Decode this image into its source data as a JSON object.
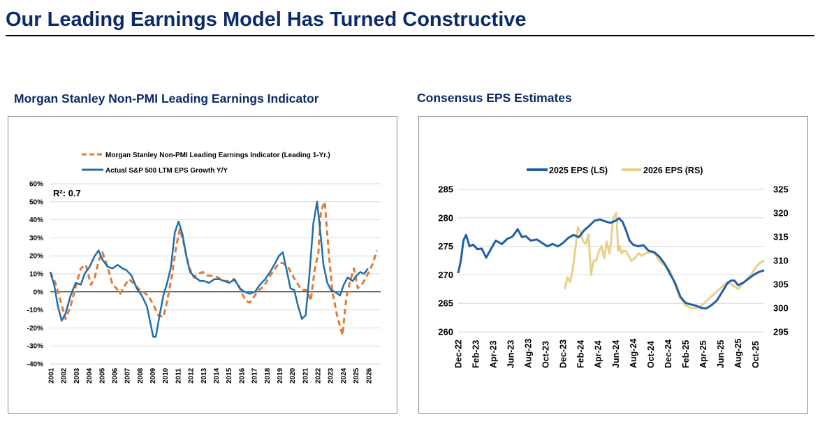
{
  "page": {
    "title": "Our Leading Earnings Model Has Turned Constructive"
  },
  "colors": {
    "title": "#0b2a6b",
    "orange": "#e07b39",
    "blue": "#1f6fad",
    "blue2": "#1e5fa8",
    "gold": "#e8d08a"
  },
  "chart_data": [
    {
      "type": "line",
      "title": "Morgan Stanley Non-PMI Leading Earnings Indicator",
      "annotation": "R²: 0.7",
      "ylim": [
        -40,
        60
      ],
      "yticks": [
        -40,
        -30,
        -20,
        -10,
        0,
        10,
        20,
        30,
        40,
        50,
        60
      ],
      "ytick_labels": [
        "-40%",
        "-30%",
        "-20%",
        "-10%",
        "0%",
        "10%",
        "20%",
        "30%",
        "40%",
        "50%",
        "60%"
      ],
      "xlim": [
        2001,
        2027
      ],
      "xticks": [
        "2001",
        "2002",
        "2003",
        "2004",
        "2005",
        "2006",
        "2007",
        "2008",
        "2009",
        "2010",
        "2011",
        "2012",
        "2013",
        "2014",
        "2015",
        "2016",
        "2017",
        "2018",
        "2019",
        "2020",
        "2021",
        "2022",
        "2023",
        "2024",
        "2025",
        "2026"
      ],
      "legend": [
        "Morgan Stanley Non-PMI Leading Earnings Indicator (Leading 1-Yr.)",
        "Actual S&P 500 LTM EPS Growth Y/Y"
      ],
      "series": [
        {
          "name": "Morgan Stanley Non-PMI Leading Earnings Indicator (Leading 1-Yr.)",
          "style": "dashed",
          "x": [
            2001.0,
            2001.4,
            2001.8,
            2002.2,
            2002.6,
            2003.0,
            2003.4,
            2003.8,
            2004.2,
            2004.5,
            2004.8,
            2005.1,
            2005.5,
            2005.9,
            2006.2,
            2006.5,
            2006.9,
            2007.2,
            2007.5,
            2007.9,
            2008.3,
            2008.7,
            2009.1,
            2009.5,
            2009.9,
            2010.2,
            2010.6,
            2010.9,
            2011.2,
            2011.5,
            2011.9,
            2012.3,
            2012.6,
            2013.0,
            2013.4,
            2013.8,
            2014.2,
            2014.6,
            2015.0,
            2015.4,
            2015.8,
            2016.1,
            2016.4,
            2016.7,
            2017.0,
            2017.4,
            2017.8,
            2018.2,
            2018.6,
            2019.0,
            2019.3,
            2019.7,
            2020.0,
            2020.4,
            2020.8,
            2021.2,
            2021.5,
            2021.8,
            2022.1,
            2022.3,
            2022.6,
            2022.9,
            2023.2,
            2023.6,
            2024.0,
            2024.3,
            2024.6,
            2024.9,
            2025.2,
            2025.6,
            2026.0,
            2026.4,
            2026.7
          ],
          "y": [
            11,
            5,
            -5,
            -15,
            -8,
            3,
            13,
            15,
            4,
            8,
            17,
            22,
            14,
            4,
            2,
            -1,
            4,
            7,
            5,
            2,
            0,
            -2,
            -7,
            -13,
            -14,
            -5,
            10,
            25,
            35,
            27,
            14,
            8,
            10,
            11,
            9,
            9,
            8,
            6,
            6,
            7,
            4,
            -1,
            -5,
            -6,
            -3,
            1,
            3,
            8,
            12,
            16,
            16,
            14,
            10,
            5,
            1,
            1,
            -5,
            12,
            22,
            45,
            50,
            23,
            0,
            -14,
            -24,
            -3,
            6,
            13,
            2,
            5,
            10,
            16,
            23
          ]
        },
        {
          "name": "Actual S&P 500 LTM EPS Growth Y/Y",
          "style": "solid",
          "x": [
            2001.0,
            2001.3,
            2001.6,
            2001.9,
            2002.2,
            2002.6,
            2003.0,
            2003.4,
            2003.7,
            2004.1,
            2004.5,
            2004.8,
            2005.1,
            2005.5,
            2005.9,
            2006.3,
            2006.7,
            2007.0,
            2007.4,
            2007.8,
            2008.2,
            2008.6,
            2008.9,
            2009.1,
            2009.3,
            2009.6,
            2009.9,
            2010.2,
            2010.5,
            2010.8,
            2011.1,
            2011.4,
            2011.7,
            2012.0,
            2012.4,
            2012.8,
            2013.1,
            2013.5,
            2013.9,
            2014.3,
            2014.7,
            2015.1,
            2015.5,
            2015.9,
            2016.3,
            2016.7,
            2017.1,
            2017.5,
            2017.9,
            2018.3,
            2018.7,
            2019.0,
            2019.3,
            2019.6,
            2019.9,
            2020.2,
            2020.5,
            2020.8,
            2021.1,
            2021.4,
            2021.7,
            2022.0,
            2022.3,
            2022.5,
            2022.8,
            2023.1,
            2023.4,
            2023.8,
            2024.1,
            2024.4,
            2024.8,
            2025.1,
            2025.4,
            2025.7,
            2026.0
          ],
          "y": [
            11,
            4,
            -8,
            -16,
            -12,
            -2,
            5,
            4,
            10,
            14,
            20,
            23,
            18,
            14,
            13,
            15,
            13,
            12,
            9,
            2,
            -2,
            -8,
            -18,
            -25,
            -25,
            -13,
            -2,
            5,
            14,
            33,
            39,
            32,
            20,
            11,
            8,
            6,
            6,
            5,
            7,
            7,
            6,
            5,
            7,
            2,
            0,
            -1,
            0,
            4,
            7,
            11,
            16,
            20,
            22,
            12,
            2,
            1,
            -8,
            -15,
            -13,
            10,
            38,
            50,
            30,
            15,
            5,
            1,
            0,
            -2,
            4,
            8,
            6,
            9,
            11,
            10,
            13
          ]
        }
      ]
    },
    {
      "type": "line",
      "title": "Consensus EPS Estimates",
      "ylim_left": [
        260,
        285
      ],
      "yticks_left": [
        260,
        265,
        270,
        275,
        280,
        285
      ],
      "ylim_right": [
        295,
        325
      ],
      "yticks_right": [
        295,
        300,
        305,
        310,
        315,
        320,
        325
      ],
      "xlim": [
        0,
        35
      ],
      "xticks": [
        "Dec-22",
        "Feb-23",
        "Apr-23",
        "Jun-23",
        "Aug-23",
        "Oct-23",
        "Dec-23",
        "Feb-24",
        "Apr-24",
        "Jun-24",
        "Aug-24",
        "Oct-24",
        "Dec-24",
        "Feb-25",
        "Apr-25",
        "Jun-25",
        "Aug-25",
        "Oct-25"
      ],
      "legend": [
        "2025 EPS (LS)",
        "2026 EPS (RS)"
      ],
      "series": [
        {
          "name": "2025 EPS (LS)",
          "axis": "left",
          "x": [
            0,
            0.3,
            0.6,
            0.9,
            1.3,
            1.7,
            2.2,
            2.7,
            3.2,
            3.7,
            4.3,
            5,
            5.6,
            6.2,
            6.8,
            7.3,
            7.7,
            8.3,
            9,
            9.6,
            10.2,
            10.8,
            11.4,
            12,
            12.6,
            13.2,
            13.8,
            14.4,
            15,
            15.6,
            16.2,
            16.8,
            17.4,
            18,
            18.4,
            18.8,
            19.2,
            19.6,
            20,
            20.6,
            21.2,
            21.8,
            22.4,
            23,
            23.6,
            24.2,
            24.8,
            25.4,
            26,
            26.6,
            27.2,
            27.8,
            28.4,
            29,
            29.6,
            30.2,
            30.8,
            31.2,
            31.6,
            32,
            32.6,
            33.2,
            33.8,
            34.4,
            35
          ],
          "y": [
            270.3,
            272.5,
            276,
            277,
            275,
            275.3,
            274.5,
            274.6,
            273,
            274.4,
            276,
            275.4,
            276.3,
            276.7,
            278,
            276.6,
            276.8,
            276,
            276.2,
            275.6,
            275,
            275.4,
            275,
            275.6,
            276.5,
            277,
            276.6,
            277.8,
            278.6,
            279.5,
            279.7,
            279.4,
            279.1,
            279.5,
            279.9,
            279.3,
            277.8,
            276,
            275.3,
            275,
            275.2,
            274.2,
            274,
            273.2,
            272,
            270.3,
            268.6,
            266.2,
            265.1,
            264.8,
            264.6,
            264.2,
            264.1,
            264.7,
            265.5,
            267,
            268.5,
            269,
            269,
            268.2,
            268.6,
            269.3,
            270,
            270.5,
            270.8
          ]
        },
        {
          "name": "2026 EPS (RS)",
          "axis": "right",
          "x": [
            12.2,
            12.5,
            12.8,
            13.1,
            13.4,
            13.7,
            14.0,
            14.3,
            14.6,
            14.9,
            15.2,
            15.5,
            15.8,
            16.1,
            16.4,
            16.7,
            17.0,
            17.3,
            17.5,
            17.7,
            17.9,
            18.1,
            18.3,
            18.5,
            18.7,
            18.9,
            19.2,
            19.5,
            19.8,
            20.1,
            20.4,
            20.7,
            21.0,
            21.5,
            22,
            22.5,
            23,
            23.6,
            24.2,
            24.8,
            25.4,
            26,
            26.6,
            27.2,
            27.8,
            28.4,
            29,
            29.6,
            30.2,
            30.8,
            31.4,
            32,
            32.5,
            33,
            33.5,
            34,
            34.5,
            35
          ],
          "y": [
            304,
            306.5,
            305.5,
            308,
            312.5,
            317,
            316,
            314,
            313.5,
            315.5,
            307,
            310,
            310,
            312,
            313,
            310.5,
            314,
            311.5,
            314,
            318.5,
            319.5,
            320,
            312,
            313,
            311.5,
            312,
            312,
            311,
            310,
            310.3,
            311,
            311.5,
            311,
            311.6,
            311.8,
            311.5,
            310,
            309,
            308,
            305,
            302,
            300.6,
            300,
            300,
            300.5,
            301.5,
            302.5,
            303.5,
            304.5,
            305.5,
            304.8,
            304,
            305,
            306,
            307,
            308.5,
            309.5,
            310
          ]
        }
      ]
    }
  ]
}
